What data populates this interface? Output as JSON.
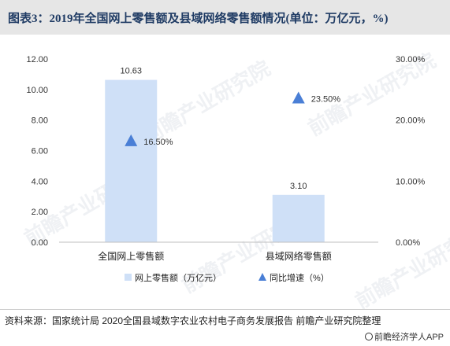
{
  "title": "图表3：2019年全国网上零售额及县域网络零售额情况(单位：万亿元，%)",
  "watermark": "前瞻产业研究院",
  "source": "资料来源：国家统计局 2020全国县域数字农业农村电子商务发展报告 前瞻产业研究院整理",
  "brand": "前瞻经济学人APP",
  "colors": {
    "bar": "#cfe0f7",
    "marker": "#4a7fd6",
    "axis": "#bfbfbf"
  },
  "chart_data": {
    "type": "bar",
    "categories": [
      "全国网上零售额",
      "县域网络零售额"
    ],
    "series": [
      {
        "name": "网上零售额（万亿元）",
        "type": "bar",
        "axis": "left",
        "values": [
          10.63,
          3.1
        ],
        "labels": [
          "10.63",
          "3.10"
        ]
      },
      {
        "name": "同比增速（%）",
        "type": "scatter",
        "axis": "right",
        "values": [
          16.5,
          23.5
        ],
        "labels": [
          "16.50%",
          "23.50%"
        ]
      }
    ],
    "y_left": {
      "min": 0,
      "max": 12,
      "ticks": [
        "0.00",
        "2.00",
        "4.00",
        "6.00",
        "8.00",
        "10.00",
        "12.00"
      ]
    },
    "y_right": {
      "min": 0,
      "max": 30,
      "ticks": [
        "0.00%",
        "10.00%",
        "20.00%",
        "30.00%"
      ]
    },
    "legend_position": "bottom"
  }
}
